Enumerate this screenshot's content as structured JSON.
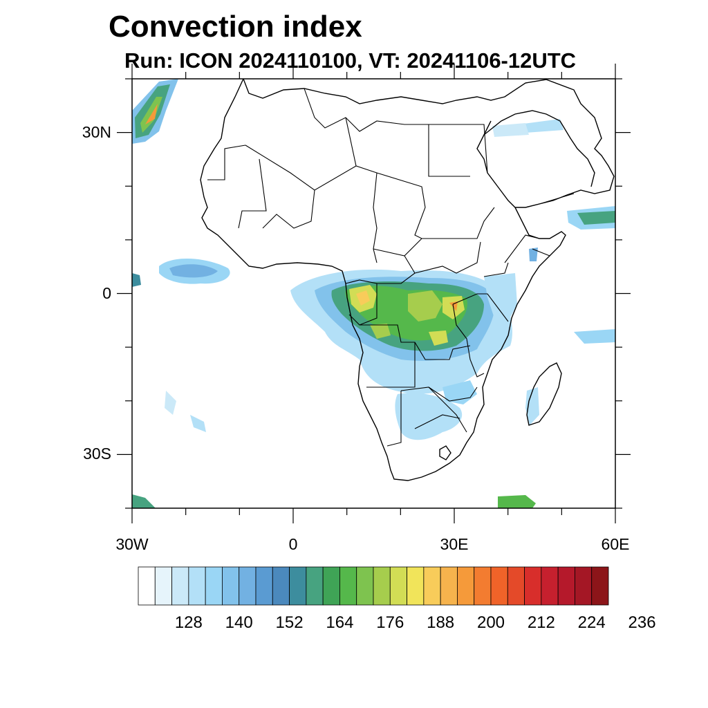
{
  "title": "Convection index",
  "subtitle": "Run: ICON 2024110100,  VT: 20241106-12UTC",
  "axes": {
    "lat_labels": [
      {
        "text": "30N",
        "value": 30
      },
      {
        "text": "0",
        "value": 0
      },
      {
        "text": "30S",
        "value": -30
      }
    ],
    "lon_labels": [
      {
        "text": "30W",
        "value": -30
      },
      {
        "text": "0",
        "value": 0
      },
      {
        "text": "30E",
        "value": 30
      },
      {
        "text": "60E",
        "value": 60
      }
    ],
    "lon_range": [
      -30,
      60
    ],
    "lat_range": [
      -40,
      40
    ]
  },
  "colorbar": {
    "labels": [
      "128",
      "140",
      "152",
      "164",
      "176",
      "188",
      "200",
      "212",
      "224",
      "236"
    ],
    "colors": [
      "#ffffff",
      "#e6f4fb",
      "#cbe9f8",
      "#b3e0f7",
      "#9ad6f5",
      "#82c2eb",
      "#72b1e2",
      "#5a9bd2",
      "#4b89bd",
      "#3d8d9e",
      "#47a380",
      "#3fa456",
      "#55b84b",
      "#7ec34f",
      "#a6cd4d",
      "#d2dd55",
      "#f1e45a",
      "#f8cc5a",
      "#f6b34d",
      "#f59a3a",
      "#f37c30",
      "#f06329",
      "#e44a29",
      "#d82e2b",
      "#c6202e",
      "#b5192b",
      "#a41725",
      "#8c1519"
    ]
  }
}
